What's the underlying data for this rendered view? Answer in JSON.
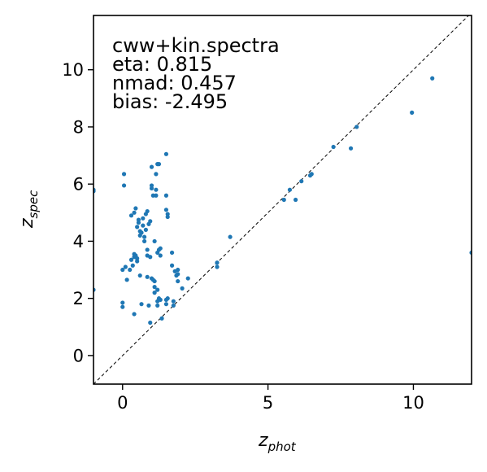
{
  "chart_data": {
    "type": "scatter",
    "annotations": [
      "cww+kin.spectra",
      "eta: 0.815",
      "nmad: 0.457",
      "bias: -2.495"
    ],
    "xlabel": {
      "main": "z",
      "sub": "phot"
    },
    "ylabel": {
      "main": "z",
      "sub": "spec"
    },
    "xlim": [
      -1,
      12
    ],
    "ylim": [
      -1,
      11.9
    ],
    "xticks": [
      0,
      5,
      10
    ],
    "yticks": [
      0,
      2,
      4,
      6,
      8,
      10
    ],
    "grid": false,
    "reference_line": {
      "type": "y=x",
      "style": "dashed",
      "color": "#000000"
    },
    "point_color": "#1f77b4",
    "points": [
      [
        -1.0,
        5.8
      ],
      [
        -1.0,
        5.75
      ],
      [
        -1.0,
        2.3
      ],
      [
        12.0,
        3.6
      ],
      [
        0.05,
        6.35
      ],
      [
        0.05,
        5.95
      ],
      [
        0.0,
        1.85
      ],
      [
        0.0,
        1.7
      ],
      [
        0.0,
        3.0
      ],
      [
        0.1,
        3.1
      ],
      [
        0.15,
        2.65
      ],
      [
        0.25,
        3.0
      ],
      [
        0.3,
        3.35
      ],
      [
        0.3,
        4.9
      ],
      [
        0.35,
        3.15
      ],
      [
        0.4,
        3.45
      ],
      [
        0.4,
        3.55
      ],
      [
        0.4,
        5.0
      ],
      [
        0.45,
        5.15
      ],
      [
        0.4,
        1.45
      ],
      [
        0.45,
        3.5
      ],
      [
        0.5,
        3.4
      ],
      [
        0.5,
        3.3
      ],
      [
        0.5,
        4.5
      ],
      [
        0.55,
        4.75
      ],
      [
        0.55,
        4.65
      ],
      [
        0.6,
        4.2
      ],
      [
        0.6,
        4.35
      ],
      [
        0.65,
        4.3
      ],
      [
        0.6,
        2.8
      ],
      [
        0.65,
        1.8
      ],
      [
        0.7,
        4.8
      ],
      [
        0.7,
        4.55
      ],
      [
        0.75,
        4.15
      ],
      [
        0.75,
        4.0
      ],
      [
        0.8,
        4.4
      ],
      [
        0.8,
        4.95
      ],
      [
        0.85,
        5.05
      ],
      [
        0.85,
        3.5
      ],
      [
        0.85,
        3.7
      ],
      [
        0.85,
        2.75
      ],
      [
        0.9,
        1.75
      ],
      [
        0.95,
        1.15
      ],
      [
        0.9,
        4.6
      ],
      [
        0.95,
        4.7
      ],
      [
        0.95,
        3.45
      ],
      [
        1.0,
        6.6
      ],
      [
        1.0,
        5.95
      ],
      [
        1.0,
        5.85
      ],
      [
        1.05,
        5.6
      ],
      [
        1.0,
        2.7
      ],
      [
        1.05,
        2.65
      ],
      [
        1.1,
        2.6
      ],
      [
        1.1,
        2.4
      ],
      [
        1.1,
        2.2
      ],
      [
        1.1,
        4.0
      ],
      [
        1.15,
        5.6
      ],
      [
        1.15,
        5.8
      ],
      [
        1.15,
        6.35
      ],
      [
        1.2,
        6.7
      ],
      [
        1.25,
        6.7
      ],
      [
        1.2,
        3.6
      ],
      [
        1.25,
        3.7
      ],
      [
        1.3,
        3.75
      ],
      [
        1.3,
        3.5
      ],
      [
        1.2,
        2.3
      ],
      [
        1.2,
        1.9
      ],
      [
        1.2,
        1.75
      ],
      [
        1.25,
        2.0
      ],
      [
        1.3,
        1.95
      ],
      [
        1.35,
        1.3
      ],
      [
        1.5,
        7.05
      ],
      [
        1.5,
        5.6
      ],
      [
        1.5,
        5.1
      ],
      [
        1.55,
        4.85
      ],
      [
        1.55,
        4.95
      ],
      [
        1.5,
        1.95
      ],
      [
        1.55,
        2.0
      ],
      [
        1.5,
        1.8
      ],
      [
        1.7,
        3.6
      ],
      [
        1.7,
        3.15
      ],
      [
        1.75,
        1.9
      ],
      [
        1.75,
        1.75
      ],
      [
        1.8,
        2.95
      ],
      [
        1.85,
        2.8
      ],
      [
        1.9,
        2.85
      ],
      [
        1.9,
        2.6
      ],
      [
        1.9,
        3.0
      ],
      [
        2.05,
        2.35
      ],
      [
        2.25,
        2.7
      ],
      [
        3.25,
        3.1
      ],
      [
        3.25,
        3.25
      ],
      [
        3.7,
        4.15
      ],
      [
        5.55,
        5.45
      ],
      [
        5.75,
        5.8
      ],
      [
        5.95,
        5.45
      ],
      [
        6.15,
        6.1
      ],
      [
        6.45,
        6.3
      ],
      [
        6.5,
        6.35
      ],
      [
        7.25,
        7.3
      ],
      [
        7.85,
        7.25
      ],
      [
        8.05,
        8.0
      ],
      [
        9.95,
        8.5
      ],
      [
        10.65,
        9.7
      ]
    ]
  }
}
